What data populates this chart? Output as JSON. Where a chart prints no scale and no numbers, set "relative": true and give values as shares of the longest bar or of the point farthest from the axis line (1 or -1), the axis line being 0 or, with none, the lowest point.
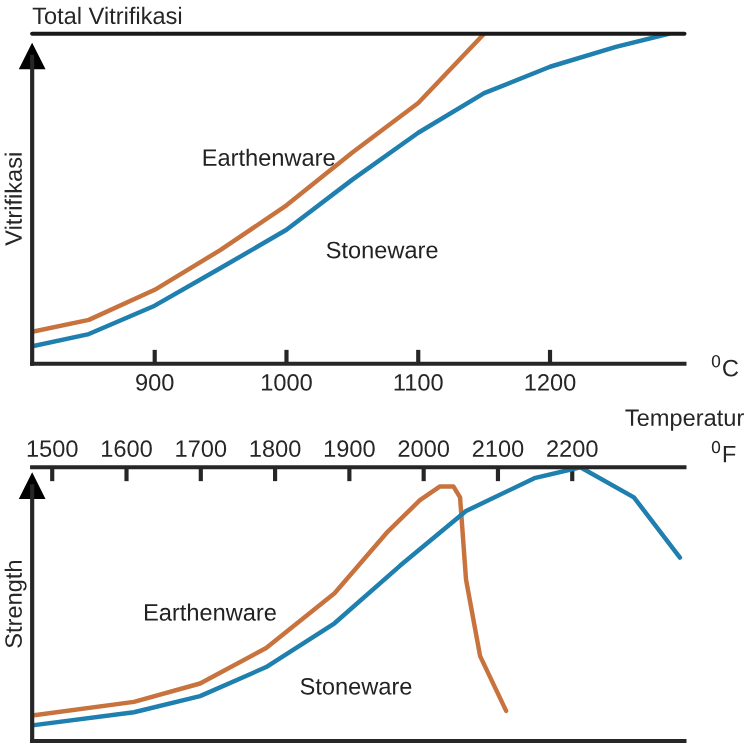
{
  "chart_data": [
    {
      "type": "line",
      "relative": true,
      "xlabel": "$^{0}$C",
      "ylabel": "Vitrifikasi",
      "xlim": [
        807,
        1302
      ],
      "xticks": [
        900,
        1000,
        1100,
        1200
      ],
      "grid": false,
      "legend": false,
      "marker": "none",
      "line_style": "solid",
      "ref_lines": [
        {
          "axis": "y",
          "value": 1,
          "label": "Total Vitrifikasi",
          "color": "#1a1a1a"
        }
      ],
      "annotations": [
        "Temperatur"
      ],
      "series": [
        {
          "name": "Earthenware",
          "color": "#c8733e",
          "x": [
            807,
            850,
            900,
            950,
            1000,
            1050,
            1100,
            1150
          ],
          "values": [
            0.097,
            0.133,
            0.224,
            0.345,
            0.48,
            0.64,
            0.79,
            1.0
          ]
        },
        {
          "name": "Stoneware",
          "color": "#1f7fae",
          "x": [
            807,
            850,
            900,
            950,
            1000,
            1050,
            1100,
            1150,
            1200,
            1250,
            1290
          ],
          "values": [
            0.053,
            0.09,
            0.176,
            0.29,
            0.406,
            0.558,
            0.7,
            0.82,
            0.9,
            0.96,
            1.0
          ]
        }
      ]
    },
    {
      "type": "line",
      "relative": true,
      "ylabel": "Strength",
      "xlabel": "$^{0}$F",
      "xlim": [
        1473,
        2351
      ],
      "xticks": [
        1500,
        1600,
        1700,
        1800,
        1900,
        2000,
        2100,
        2200
      ],
      "tick_labels": "x",
      "grid": false,
      "legend": false,
      "marker": "none",
      "line_style": "solid",
      "series": [
        {
          "name": "Earthenware",
          "color": "#c8733e",
          "x": [
            1473,
            1610,
            1699,
            1788,
            1880,
            1950,
            1995,
            2022,
            2040,
            2049,
            2057,
            2076,
            2111
          ],
          "values": [
            0.093,
            0.143,
            0.21,
            0.34,
            0.54,
            0.76,
            0.88,
            0.93,
            0.93,
            0.89,
            0.59,
            0.31,
            0.11
          ]
        },
        {
          "name": "Stoneware",
          "color": "#1f7fae",
          "x": [
            1473,
            1610,
            1699,
            1788,
            1880,
            1968,
            2057,
            2149,
            2211,
            2283,
            2345
          ],
          "values": [
            0.057,
            0.105,
            0.164,
            0.27,
            0.43,
            0.64,
            0.84,
            0.96,
            1.0,
            0.89,
            0.67
          ]
        }
      ]
    }
  ]
}
